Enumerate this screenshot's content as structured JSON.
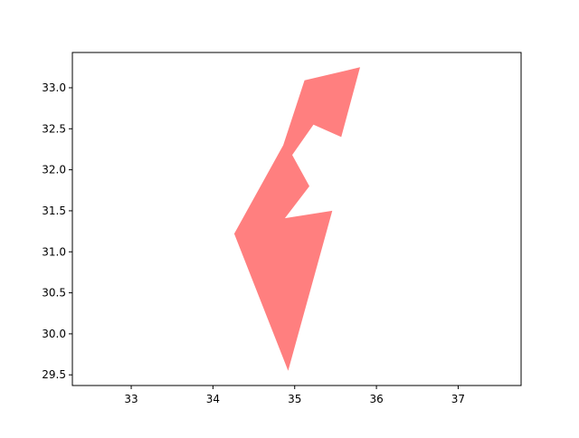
{
  "chart_data": {
    "type": "area",
    "title": "",
    "xlabel": "",
    "ylabel": "",
    "xlim": [
      32.28,
      37.77
    ],
    "ylim": [
      29.37,
      33.43
    ],
    "x_ticks": [
      {
        "value": 33,
        "label": "33"
      },
      {
        "value": 34,
        "label": "34"
      },
      {
        "value": 35,
        "label": "35"
      },
      {
        "value": 36,
        "label": "36"
      },
      {
        "value": 37,
        "label": "37"
      }
    ],
    "y_ticks": [
      {
        "value": 29.5,
        "label": "29.5"
      },
      {
        "value": 30.0,
        "label": "30.0"
      },
      {
        "value": 30.5,
        "label": "30.5"
      },
      {
        "value": 31.0,
        "label": "31.0"
      },
      {
        "value": 31.5,
        "label": "31.5"
      },
      {
        "value": 32.0,
        "label": "32.0"
      },
      {
        "value": 32.5,
        "label": "32.5"
      },
      {
        "value": 33.0,
        "label": "33.0"
      }
    ],
    "grid": false,
    "legend": "none",
    "series": [
      {
        "fill_color": "#ff7f7f",
        "polygon": [
          [
            35.12,
            33.09
          ],
          [
            35.8,
            33.25
          ],
          [
            35.57,
            32.4
          ],
          [
            35.23,
            32.55
          ],
          [
            34.97,
            32.18
          ],
          [
            35.18,
            31.8
          ],
          [
            34.88,
            31.41
          ],
          [
            35.46,
            31.5
          ],
          [
            34.92,
            29.55
          ],
          [
            34.26,
            31.22
          ],
          [
            34.86,
            32.3
          ]
        ]
      }
    ]
  }
}
